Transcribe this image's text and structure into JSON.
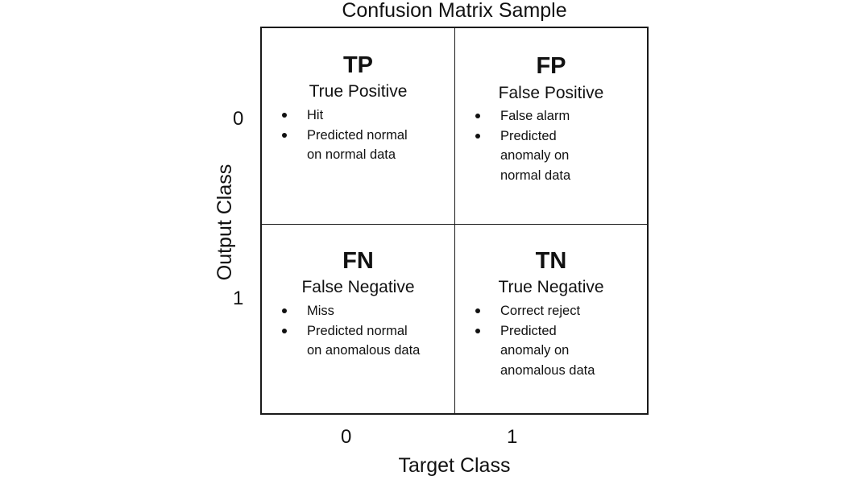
{
  "title": "Confusion Matrix Sample",
  "matrix": {
    "tp": {
      "abbr": "TP",
      "full": "True Positive",
      "bullets": [
        "Hit",
        "Predicted normal\non normal data"
      ]
    },
    "fp": {
      "abbr": "FP",
      "full": "False Positive",
      "bullets": [
        "False alarm",
        "Predicted\nanomaly on\nnormal data"
      ]
    },
    "fn": {
      "abbr": "FN",
      "full": "False Negative",
      "bullets": [
        "Miss",
        "Predicted normal\non anomalous data"
      ]
    },
    "tn": {
      "abbr": "TN",
      "full": "True Negative",
      "bullets": [
        "Correct reject",
        "Predicted\nanomaly on\nanomalous data"
      ]
    }
  },
  "axes": {
    "xlabel": "Target Class",
    "ylabel": "Output Class",
    "x_ticks": [
      "0",
      "1"
    ],
    "y_ticks": [
      "0",
      "1"
    ]
  }
}
